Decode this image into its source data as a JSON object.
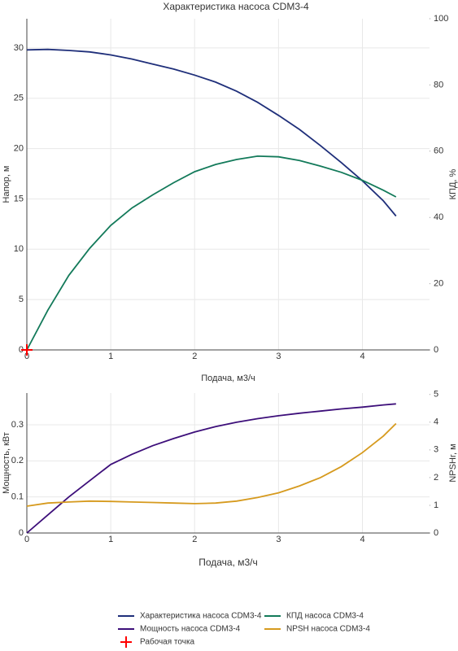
{
  "chart_data": [
    {
      "type": "line",
      "title": "Характеристика насоса CDM3-4",
      "x_label": "Подача, м3/ч",
      "y_label": "Напор, м",
      "y2_label": "КПД, %",
      "x": [
        0,
        0.25,
        0.5,
        0.75,
        1,
        1.25,
        1.5,
        1.75,
        2,
        2.25,
        2.5,
        2.75,
        3,
        3.25,
        3.5,
        3.75,
        4,
        4.25,
        4.4
      ],
      "xlim": [
        0,
        4.8
      ],
      "xticks": [
        0,
        1,
        2,
        3,
        4
      ],
      "ylim": [
        0,
        32.9
      ],
      "yticks": [
        0,
        5,
        10,
        15,
        20,
        25,
        30
      ],
      "y2lim": [
        0,
        100
      ],
      "y2ticks": [
        0,
        20,
        40,
        60,
        80,
        100
      ],
      "grid": true,
      "series": [
        {
          "name": "Характеристика насоса CDM3-4",
          "color": "#1f2f7a",
          "values": [
            29.8,
            29.85,
            29.75,
            29.6,
            29.3,
            28.9,
            28.4,
            27.9,
            27.3,
            26.6,
            25.7,
            24.6,
            23.3,
            21.9,
            20.3,
            18.6,
            16.8,
            14.8,
            13.3
          ]
        },
        {
          "name": "КПД насоса CDM3-4",
          "color": "#137a5a",
          "axis": "y2",
          "values": [
            0,
            12,
            22.5,
            30.7,
            37.6,
            42.8,
            46.8,
            50.5,
            53.8,
            56,
            57.5,
            58.5,
            58.3,
            57.2,
            55.5,
            53.6,
            51.2,
            48.2,
            46.2
          ]
        },
        {
          "name": "Рабочая точка",
          "color": "#ff0000",
          "marker": "cross",
          "x": [
            0
          ],
          "values": [
            0
          ]
        }
      ]
    },
    {
      "type": "line",
      "x_label": "Подача, м3/ч",
      "y_label": "Мощность, кВт",
      "y2_label": "NPSHr, м",
      "x": [
        0,
        0.25,
        0.5,
        0.75,
        1,
        1.25,
        1.5,
        1.75,
        2,
        2.25,
        2.5,
        2.75,
        3,
        3.25,
        3.5,
        3.75,
        4,
        4.25,
        4.4
      ],
      "xlim": [
        0,
        4.8
      ],
      "xticks": [
        0,
        1,
        2,
        3,
        4
      ],
      "ylim": [
        0,
        0.388
      ],
      "yticks": [
        0,
        0.1,
        0.2,
        0.3
      ],
      "y2lim": [
        0,
        5.05
      ],
      "y2ticks": [
        0,
        1,
        2,
        3,
        4,
        5
      ],
      "grid": true,
      "series": [
        {
          "name": "Мощность насоса CDM3-4",
          "color": "#3d0f7a",
          "values": [
            0,
            0.05,
            0.1,
            0.145,
            0.19,
            0.218,
            0.242,
            0.262,
            0.28,
            0.295,
            0.307,
            0.317,
            0.325,
            0.332,
            0.338,
            0.344,
            0.349,
            0.355,
            0.358
          ]
        },
        {
          "name": "NPSH насоса CDM3-4",
          "color": "#d69a1e",
          "axis": "y2",
          "values": [
            0.97,
            1.08,
            1.12,
            1.15,
            1.14,
            1.12,
            1.1,
            1.08,
            1.06,
            1.08,
            1.15,
            1.28,
            1.45,
            1.7,
            2.0,
            2.4,
            2.9,
            3.5,
            3.95
          ]
        }
      ]
    }
  ]
}
